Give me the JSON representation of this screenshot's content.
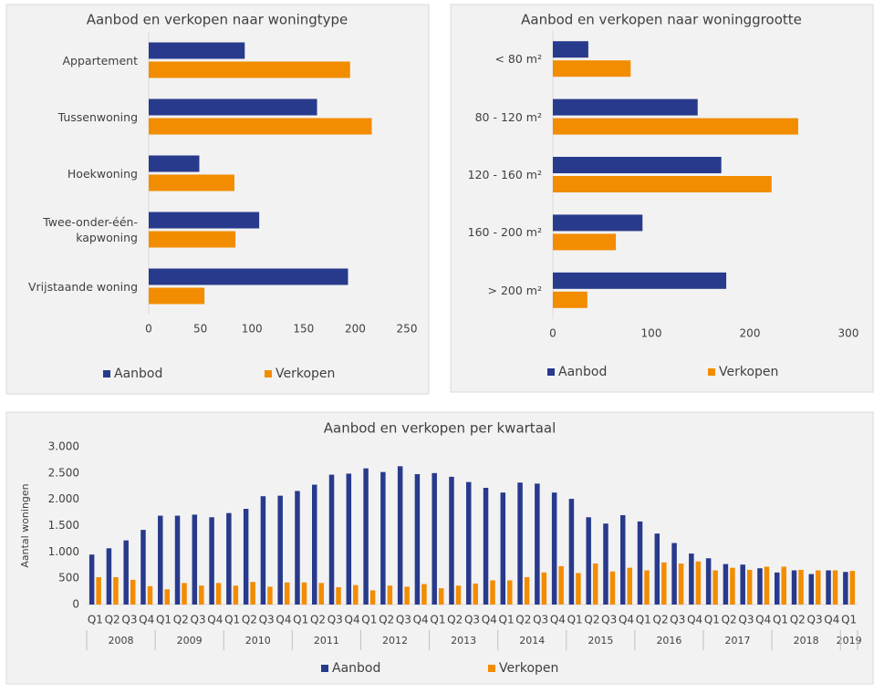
{
  "chart_data": [
    {
      "type": "bar",
      "horizontal": true,
      "title": "Aanbod en verkopen naar woningtype",
      "categories": [
        "Appartement",
        "Tussenwoning",
        "Hoekwoning",
        "Twee-onder-één-kapwoning",
        "Vrijstaande woning"
      ],
      "series": [
        {
          "name": "Aanbod",
          "color": "#283a8c",
          "values": [
            93,
            163,
            49,
            107,
            193
          ]
        },
        {
          "name": "Verkopen",
          "color": "#f28c00",
          "values": [
            195,
            216,
            83,
            84,
            54
          ]
        }
      ],
      "xlim": [
        0,
        250
      ],
      "xticks": [
        0,
        50,
        100,
        150,
        200,
        250
      ],
      "grid": false,
      "legend": "bottom"
    },
    {
      "type": "bar",
      "horizontal": true,
      "title": "Aanbod en verkopen naar woninggrootte",
      "categories": [
        "< 80 m²",
        "80 - 120 m²",
        "120 - 160 m²",
        "160 - 200 m²",
        "> 200 m²"
      ],
      "series": [
        {
          "name": "Aanbod",
          "color": "#283a8c",
          "values": [
            36,
            147,
            171,
            91,
            176
          ]
        },
        {
          "name": "Verkopen",
          "color": "#f28c00",
          "values": [
            79,
            249,
            222,
            64,
            35
          ]
        }
      ],
      "xlim": [
        0,
        300
      ],
      "xticks": [
        0,
        100,
        200,
        300
      ],
      "grid": false,
      "legend": "bottom"
    },
    {
      "type": "bar",
      "horizontal": false,
      "title": "Aanbod en verkopen per kwartaal",
      "ylabel": "Aantal woningen",
      "categories": [
        "Q1",
        "Q2",
        "Q3",
        "Q4",
        "Q1",
        "Q2",
        "Q3",
        "Q4",
        "Q1",
        "Q2",
        "Q3",
        "Q4",
        "Q1",
        "Q2",
        "Q3",
        "Q4",
        "Q1",
        "Q2",
        "Q3",
        "Q4",
        "Q1",
        "Q2",
        "Q3",
        "Q4",
        "Q1",
        "Q2",
        "Q3",
        "Q4",
        "Q1",
        "Q2",
        "Q3",
        "Q4",
        "Q1",
        "Q2",
        "Q3",
        "Q4",
        "Q1",
        "Q2",
        "Q3",
        "Q4",
        "Q1",
        "Q2",
        "Q3",
        "Q4",
        "Q1"
      ],
      "groups": [
        "2008",
        "2009",
        "2010",
        "2011",
        "2012",
        "2013",
        "2014",
        "2015",
        "2016",
        "2017",
        "2018",
        "2019"
      ],
      "series": [
        {
          "name": "Aanbod",
          "color": "#283a8c",
          "values": [
            950,
            1070,
            1220,
            1420,
            1690,
            1690,
            1710,
            1660,
            1740,
            1820,
            2060,
            2070,
            2160,
            2280,
            2470,
            2490,
            2590,
            2520,
            2630,
            2480,
            2500,
            2430,
            2330,
            2220,
            2130,
            2320,
            2300,
            2130,
            2010,
            1660,
            1540,
            1700,
            1580,
            1350,
            1170,
            970,
            880,
            770,
            760,
            690,
            610,
            650,
            580,
            650,
            620
          ]
        },
        {
          "name": "Verkopen",
          "color": "#f28c00",
          "values": [
            520,
            520,
            470,
            350,
            290,
            410,
            360,
            410,
            360,
            430,
            340,
            420,
            420,
            410,
            330,
            370,
            270,
            360,
            340,
            390,
            310,
            360,
            400,
            460,
            460,
            520,
            610,
            730,
            600,
            780,
            630,
            700,
            650,
            800,
            780,
            820,
            650,
            700,
            660,
            720,
            720,
            660,
            650,
            650,
            640
          ]
        }
      ],
      "ylim": [
        0,
        3000
      ],
      "yticks": [
        0,
        500,
        {
          "value": 1000,
          "label": "1.000"
        },
        {
          "value": 1500,
          "label": "1.500"
        },
        {
          "value": 2000,
          "label": "2.000"
        },
        {
          "value": 2500,
          "label": "2.500"
        },
        {
          "value": 3000,
          "label": "3.000"
        }
      ],
      "grid": false,
      "legend": "bottom"
    }
  ]
}
